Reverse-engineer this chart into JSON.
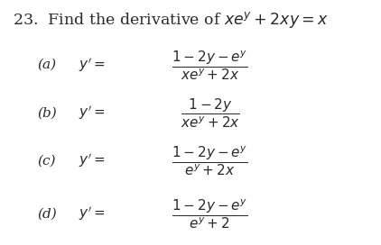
{
  "background_color": "#ffffff",
  "title": "23.  Find the derivative of $xe^y + 2xy = x$",
  "title_fontsize": 12.5,
  "text_color": "#2a2a2a",
  "font_size": 11.0,
  "rows": [
    {
      "label": "(a)",
      "yprime": "y\\u2019 =",
      "fraction": "$\\dfrac{1 - 2y - e^y}{xe^y + 2x}$"
    },
    {
      "label": "(b)",
      "yprime": "y\\u2019 =",
      "fraction": "$\\dfrac{1 - 2y}{xe^y + 2x}$"
    },
    {
      "label": "(c)",
      "yprime": "y\\u2019 =",
      "fraction": "$\\dfrac{1 - 2y - e^y}{e^y + 2x}$"
    },
    {
      "label": "(d)",
      "yprime": "y\\u2019 =",
      "fraction": "$\\dfrac{1 - 2y - e^y}{e^y + 2}$"
    }
  ]
}
